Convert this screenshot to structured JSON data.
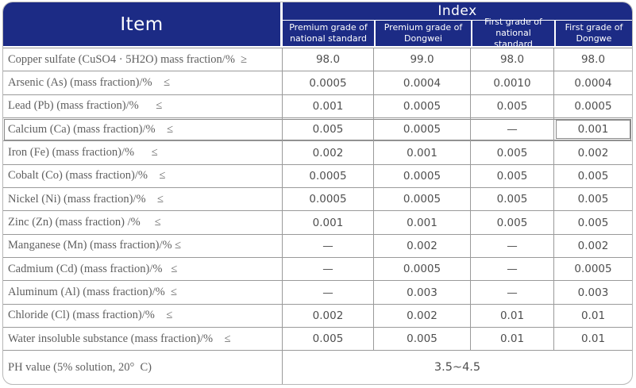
{
  "colors": {
    "header_blue": "#1c2b85",
    "grid_line": "#9a9a9a",
    "outer_border": "#b7b7b7",
    "item_text": "#5f5f5f",
    "value_text": "#4f4f4f"
  },
  "header": {
    "item_label": "Item",
    "index_label": "Index",
    "columns": [
      "Premium grade of national standard",
      "Premium grade of Dongwei",
      "First grade of national standard",
      "First grade of Dongwe"
    ]
  },
  "rows": [
    {
      "item": "Copper sulfate (CuSO4 · 5H2O) mass fraction/%  ≥",
      "values": [
        "98.0",
        "99.0",
        "98.0",
        "98.0"
      ],
      "highlighted": false
    },
    {
      "item": "Arsenic (As) (mass fraction)/%    ≤",
      "values": [
        "0.0005",
        "0.0004",
        "0.0010",
        "0.0004"
      ],
      "highlighted": false
    },
    {
      "item": "Lead (Pb) (mass fraction)/%      ≤",
      "values": [
        "0.001",
        "0.0005",
        "0.005",
        "0.0005"
      ],
      "highlighted": false
    },
    {
      "item": "Calcium (Ca) (mass fraction)/%    ≤",
      "values": [
        "0.005",
        "0.0005",
        "—",
        "0.001"
      ],
      "highlighted": true
    },
    {
      "item": "Iron (Fe) (mass fraction)/%      ≤",
      "values": [
        "0.002",
        "0.001",
        "0.005",
        "0.002"
      ],
      "highlighted": false
    },
    {
      "item": "Cobalt (Co) (mass fraction)/%    ≤",
      "values": [
        "0.0005",
        "0.0005",
        "0.005",
        "0.005"
      ],
      "highlighted": false
    },
    {
      "item": "Nickel (Ni) (mass fraction)/%    ≤",
      "values": [
        "0.0005",
        "0.0005",
        "0.005",
        "0.005"
      ],
      "highlighted": false
    },
    {
      "item": "Zinc (Zn) (mass fraction) /%     ≤",
      "values": [
        "0.001",
        "0.001",
        "0.005",
        "0.005"
      ],
      "highlighted": false
    },
    {
      "item": "Manganese (Mn) (mass fraction)/% ≤",
      "values": [
        "—",
        "0.002",
        "—",
        "0.002"
      ],
      "highlighted": false
    },
    {
      "item": "Cadmium (Cd) (mass fraction)/%   ≤",
      "values": [
        "—",
        "0.0005",
        "—",
        "0.0005"
      ],
      "highlighted": false
    },
    {
      "item": "Aluminum (Al) (mass fraction)/%  ≤",
      "values": [
        "—",
        "0.003",
        "—",
        "0.003"
      ],
      "highlighted": false
    },
    {
      "item": "Chloride (Cl) (mass fraction)/%    ≤",
      "values": [
        "0.002",
        "0.002",
        "0.01",
        "0.01"
      ],
      "highlighted": false
    },
    {
      "item": "Water insoluble substance (mass fraction)/%    ≤",
      "values": [
        "0.005",
        "0.005",
        "0.01",
        "0.01"
      ],
      "highlighted": false
    }
  ],
  "ph_row": {
    "item": "PH value (5% solution, 20°  C)",
    "value": "3.5~4.5"
  }
}
